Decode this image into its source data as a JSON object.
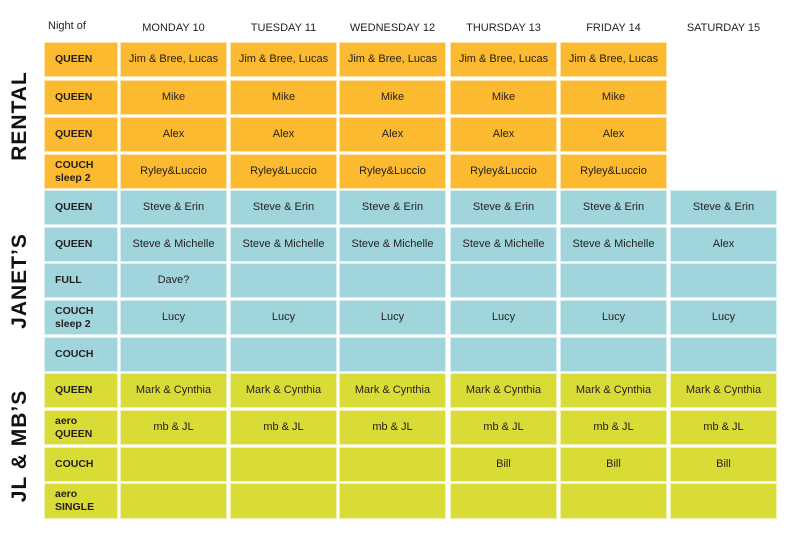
{
  "header": {
    "night_of": "Night of",
    "days": [
      "MONDAY 10",
      "TUESDAY 11",
      "WEDNESDAY 12",
      "THURSDAY 13",
      "FRIDAY 14",
      "SATURDAY 15"
    ]
  },
  "groups": [
    {
      "name": "RENTAL",
      "color": "#FBBA2F",
      "rows": [
        {
          "label": "QUEEN",
          "cells": [
            "Jim & Bree, Lucas",
            "Jim & Bree, Lucas",
            "Jim & Bree, Lucas",
            "Jim & Bree, Lucas",
            "Jim & Bree, Lucas",
            null
          ]
        },
        {
          "label": "QUEEN",
          "cells": [
            "Mike",
            "Mike",
            "Mike",
            "Mike",
            "Mike",
            null
          ]
        },
        {
          "label": "QUEEN",
          "cells": [
            "Alex",
            "Alex",
            "Alex",
            "Alex",
            "Alex",
            null
          ]
        },
        {
          "label": "COUCH\nsleep 2",
          "cells": [
            "Ryley&Luccio",
            "Ryley&Luccio",
            "Ryley&Luccio",
            "Ryley&Luccio",
            "Ryley&Luccio",
            null
          ]
        }
      ]
    },
    {
      "name": "JANET’S",
      "color": "#A1D5DC",
      "rows": [
        {
          "label": "QUEEN",
          "cells": [
            "Steve & Erin",
            "Steve & Erin",
            "Steve & Erin",
            "Steve & Erin",
            "Steve & Erin",
            "Steve & Erin"
          ]
        },
        {
          "label": "QUEEN",
          "cells": [
            "Steve & Michelle",
            "Steve & Michelle",
            "Steve & Michelle",
            "Steve & Michelle",
            "Steve & Michelle",
            "Alex"
          ]
        },
        {
          "label": "FULL",
          "cells": [
            "Dave?",
            "",
            "",
            "",
            "",
            ""
          ]
        },
        {
          "label": "COUCH\nsleep 2",
          "cells": [
            "Lucy",
            "Lucy",
            "Lucy",
            "Lucy",
            "Lucy",
            "Lucy"
          ]
        },
        {
          "label": "COUCH",
          "cells": [
            "",
            "",
            "",
            "",
            "",
            ""
          ]
        }
      ]
    },
    {
      "name": "JL & MB’S",
      "color": "#D9DB36",
      "rows": [
        {
          "label": "QUEEN",
          "cells": [
            "Mark & Cynthia",
            "Mark & Cynthia",
            "Mark & Cynthia",
            "Mark & Cynthia",
            "Mark & Cynthia",
            "Mark & Cynthia"
          ]
        },
        {
          "label": "aero\nQUEEN",
          "cells": [
            "mb & JL",
            "mb & JL",
            "mb & JL",
            "mb & JL",
            "mb & JL",
            "mb & JL"
          ]
        },
        {
          "label": "COUCH",
          "cells": [
            "",
            "",
            "",
            "Bill",
            "Bill",
            "Bill"
          ]
        },
        {
          "label": "aero\nSINGLE",
          "cells": [
            "",
            "",
            "",
            "",
            "",
            ""
          ]
        }
      ]
    }
  ]
}
